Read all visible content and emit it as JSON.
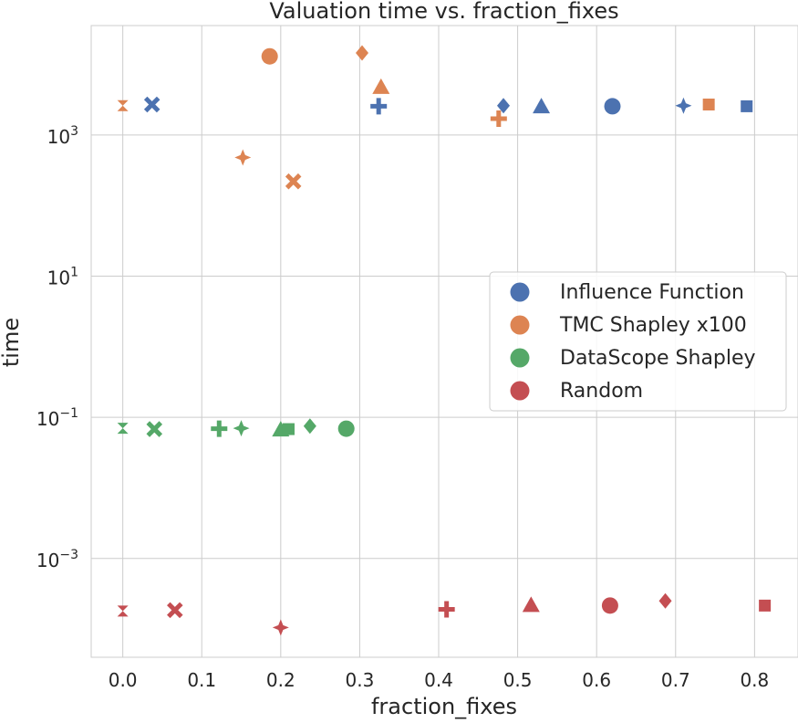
{
  "chart_data": {
    "type": "scatter",
    "title": "Valuation time vs. fraction_fixes",
    "xlabel": "fraction_fixes",
    "ylabel": "time",
    "xlim": [
      -0.04,
      0.855
    ],
    "ylim_log10": [
      -4.4,
      4.55
    ],
    "yscale": "log",
    "grid": true,
    "legend_position": "center-right",
    "xticks": [
      "0.0",
      "0.1",
      "0.2",
      "0.3",
      "0.4",
      "0.5",
      "0.6",
      "0.7",
      "0.8"
    ],
    "xtick_values": [
      0,
      0.1,
      0.2,
      0.3,
      0.4,
      0.5,
      0.6,
      0.7,
      0.8
    ],
    "ytick_exponents": [
      "3",
      "1",
      "−1",
      "−3"
    ],
    "ytick_values_log10": [
      3,
      1,
      -1,
      -3
    ],
    "ytick_base": "10",
    "series": [
      {
        "name": "Influence Function",
        "color": "#4c72b0",
        "points": [
          {
            "x": 0.037,
            "y": 2700,
            "marker": "x"
          },
          {
            "x": 0.324,
            "y": 2550,
            "marker": "plus"
          },
          {
            "x": 0.482,
            "y": 2600,
            "marker": "diamond"
          },
          {
            "x": 0.53,
            "y": 2500,
            "marker": "triangle"
          },
          {
            "x": 0.62,
            "y": 2550,
            "marker": "circle"
          },
          {
            "x": 0.71,
            "y": 2600,
            "marker": "star4"
          },
          {
            "x": 0.79,
            "y": 2550,
            "marker": "square"
          }
        ]
      },
      {
        "name": "TMC Shapley x100",
        "color": "#dd8452",
        "points": [
          {
            "x": 0.0,
            "y": 2600,
            "marker": "hourglass"
          },
          {
            "x": 0.152,
            "y": 480,
            "marker": "star4"
          },
          {
            "x": 0.186,
            "y": 13000,
            "marker": "circle"
          },
          {
            "x": 0.216,
            "y": 220,
            "marker": "x"
          },
          {
            "x": 0.303,
            "y": 14500,
            "marker": "diamond"
          },
          {
            "x": 0.327,
            "y": 4700,
            "marker": "triangle"
          },
          {
            "x": 0.476,
            "y": 1700,
            "marker": "plus"
          },
          {
            "x": 0.742,
            "y": 2700,
            "marker": "square"
          }
        ]
      },
      {
        "name": "DataScope Shapley",
        "color": "#55a868",
        "points": [
          {
            "x": 0.0,
            "y": 0.07,
            "marker": "hourglass"
          },
          {
            "x": 0.04,
            "y": 0.068,
            "marker": "x"
          },
          {
            "x": 0.122,
            "y": 0.069,
            "marker": "plus"
          },
          {
            "x": 0.15,
            "y": 0.07,
            "marker": "star4"
          },
          {
            "x": 0.2,
            "y": 0.066,
            "marker": "triangle"
          },
          {
            "x": 0.21,
            "y": 0.068,
            "marker": "square"
          },
          {
            "x": 0.237,
            "y": 0.075,
            "marker": "diamond"
          },
          {
            "x": 0.283,
            "y": 0.069,
            "marker": "circle"
          }
        ]
      },
      {
        "name": "Random",
        "color": "#c44e52",
        "points": [
          {
            "x": 0.0,
            "y": 0.00018,
            "marker": "hourglass"
          },
          {
            "x": 0.066,
            "y": 0.000185,
            "marker": "x"
          },
          {
            "x": 0.2,
            "y": 0.000105,
            "marker": "star4"
          },
          {
            "x": 0.41,
            "y": 0.00019,
            "marker": "plus"
          },
          {
            "x": 0.517,
            "y": 0.000215,
            "marker": "triangle"
          },
          {
            "x": 0.617,
            "y": 0.000215,
            "marker": "circle"
          },
          {
            "x": 0.687,
            "y": 0.00025,
            "marker": "diamond"
          },
          {
            "x": 0.813,
            "y": 0.000215,
            "marker": "square"
          }
        ]
      }
    ]
  }
}
